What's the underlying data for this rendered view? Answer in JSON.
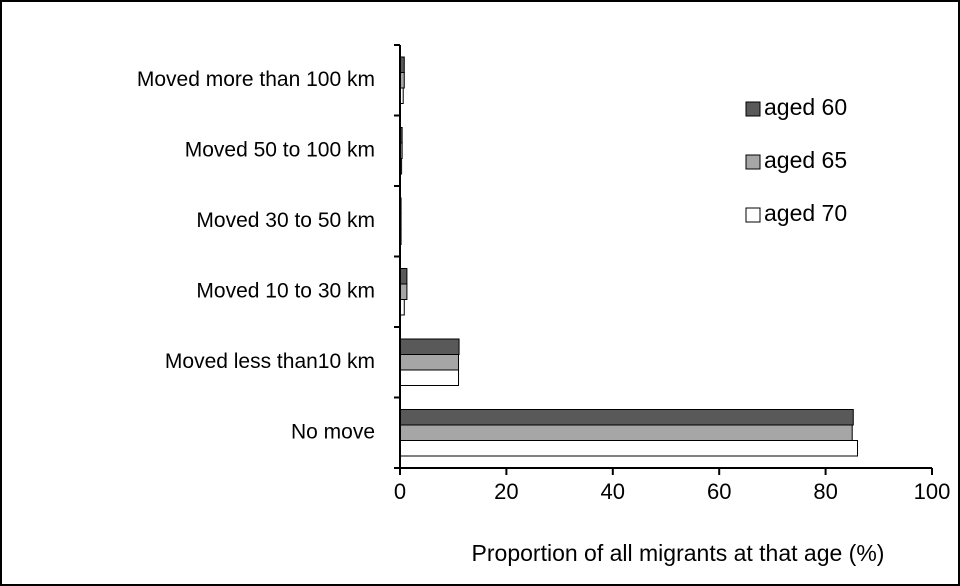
{
  "chart_data": {
    "type": "hbar",
    "categories": [
      "No move",
      "Moved less than10 km",
      "Moved 10 to 30 km",
      "Moved 30 to 50 km",
      "Moved 50 to 100 km",
      "Moved more than 100 km"
    ],
    "series": [
      {
        "name": "aged 60",
        "color": "#595959",
        "values": [
          85.2,
          11.1,
          1.3,
          0.2,
          0.4,
          0.8
        ]
      },
      {
        "name": "aged 65",
        "color": "#a6a6a6",
        "values": [
          85,
          11,
          1.3,
          0.2,
          0.4,
          0.8
        ]
      },
      {
        "name": "aged 70",
        "color": "#ffffff",
        "values": [
          86,
          11,
          0.8,
          0.2,
          0.3,
          0.6
        ]
      }
    ],
    "xlabel": "Proportion of all migrants at that age (%)",
    "xlim": [
      0,
      100
    ],
    "xticks": [
      0,
      20,
      40,
      60,
      80,
      100
    ],
    "legend": "upper right"
  }
}
